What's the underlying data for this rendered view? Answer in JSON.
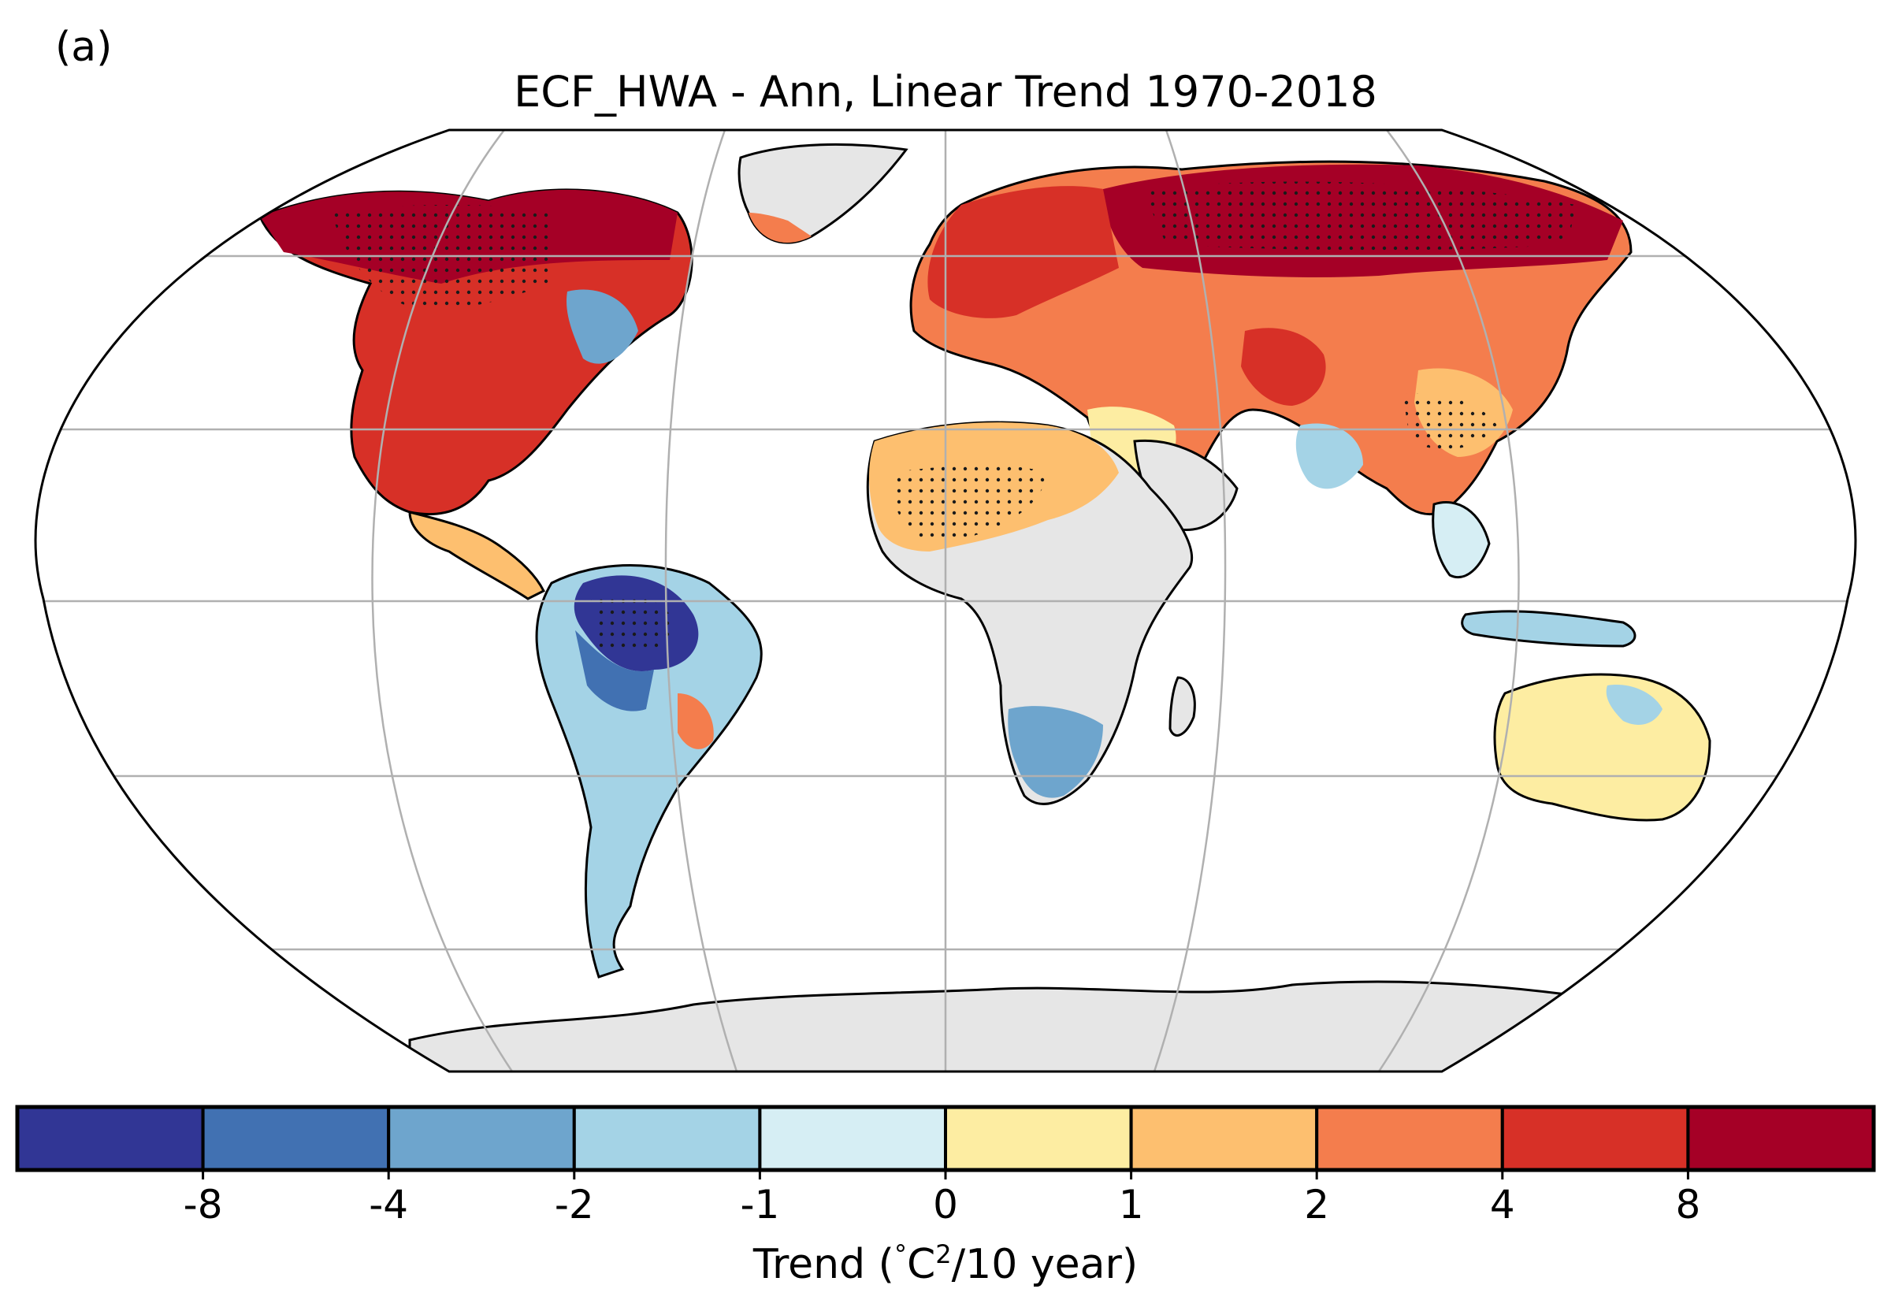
{
  "panel_label": "(a)",
  "title": "ECF_HWA - Ann, Linear Trend 1970-2018",
  "colorbar": {
    "label_prefix": "Trend (",
    "label_deg": "°",
    "label_unit": "C",
    "label_exp": "2",
    "label_suffix": "/10 year)",
    "ticks": [
      "-8",
      "-4",
      "-2",
      "-1",
      "0",
      "1",
      "2",
      "4",
      "8"
    ],
    "colors": [
      "#313695",
      "#4171b2",
      "#6ea5cd",
      "#a4d3e6",
      "#d6eef4",
      "#fdeda2",
      "#fdbf6f",
      "#f47d4d",
      "#d73027",
      "#a50026"
    ]
  },
  "map": {
    "projection": "Robinson",
    "ocean_color": "#ffffff",
    "no_data_color": "#e6e6e6",
    "coastline_color": "#000000",
    "gridline_color": "#b0b0b0",
    "stippling": "significant trend"
  }
}
